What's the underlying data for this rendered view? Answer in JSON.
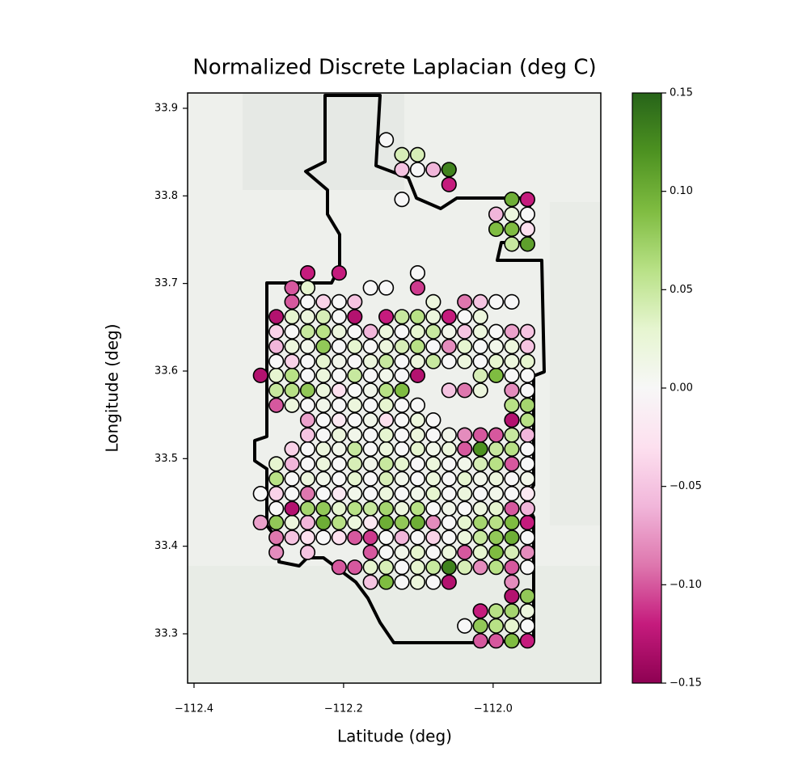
{
  "chart_data": {
    "type": "scatter",
    "title": "Normalized Discrete Laplacian (deg C)",
    "x_label": "Latitude (deg)",
    "y_label": "Longitude (deg)",
    "xlim": [
      -112.4086,
      -111.856
    ],
    "ylim": [
      33.2437,
      33.9175
    ],
    "xticks": [
      {
        "value": -112.4,
        "label": "−112.4"
      },
      {
        "value": -112.2,
        "label": "−112.2"
      },
      {
        "value": -112.0,
        "label": "−112.0"
      }
    ],
    "yticks": [
      33.3,
      33.4,
      33.5,
      33.6,
      33.7,
      33.8,
      33.9
    ],
    "colormap": "PiYG",
    "clim": [
      -0.15,
      0.15
    ],
    "cticks": [
      {
        "value": -0.15,
        "label": "−0.15"
      },
      {
        "value": -0.1,
        "label": "−0.10"
      },
      {
        "value": -0.05,
        "label": "−0.05"
      },
      {
        "value": 0,
        "label": "0.00"
      },
      {
        "value": 0.05,
        "label": "0.05"
      },
      {
        "value": 0.1,
        "label": "0.10"
      },
      0.15
    ],
    "marker_edge_color": "#000000",
    "x": [
      -112.017,
      -111.996,
      -111.975,
      -111.954,
      -112.038,
      -112.017,
      -111.996,
      -111.975,
      -111.954,
      -112.017,
      -111.996,
      -111.975,
      -111.954,
      -111.975,
      -111.954,
      -112.164,
      -112.143,
      -112.122,
      -112.101,
      -112.08,
      -112.059,
      -111.975,
      -112.206,
      -112.185,
      -112.164,
      -112.143,
      -112.122,
      -112.101,
      -112.08,
      -112.059,
      -112.038,
      -112.017,
      -111.996,
      -111.975,
      -111.954,
      -112.29,
      -112.248,
      -112.164,
      -112.143,
      -112.122,
      -112.101,
      -112.08,
      -112.059,
      -112.038,
      -112.017,
      -111.996,
      -111.975,
      -111.954,
      -112.29,
      -112.269,
      -112.248,
      -112.227,
      -112.206,
      -112.185,
      -112.164,
      -112.143,
      -112.122,
      -112.101,
      -112.08,
      -112.059,
      -112.038,
      -112.017,
      -111.996,
      -111.975,
      -111.954,
      -112.311,
      -112.29,
      -112.269,
      -112.248,
      -112.227,
      -112.206,
      -112.185,
      -112.164,
      -112.143,
      -112.122,
      -112.101,
      -112.08,
      -112.059,
      -112.038,
      -112.017,
      -111.996,
      -111.975,
      -111.954,
      -112.29,
      -112.269,
      -112.248,
      -112.227,
      -112.206,
      -112.185,
      -112.164,
      -112.143,
      -112.122,
      -112.101,
      -112.08,
      -112.059,
      -112.038,
      -112.017,
      -111.996,
      -111.975,
      -111.954,
      -112.311,
      -112.29,
      -112.269,
      -112.248,
      -112.227,
      -112.206,
      -112.185,
      -112.164,
      -112.143,
      -112.122,
      -112.101,
      -112.08,
      -112.059,
      -112.038,
      -112.017,
      -111.996,
      -111.975,
      -111.954,
      -112.29,
      -112.269,
      -112.248,
      -112.227,
      -112.206,
      -112.185,
      -112.164,
      -112.143,
      -112.122,
      -112.101,
      -112.08,
      -112.059,
      -112.038,
      -112.017,
      -111.996,
      -111.975,
      -111.954,
      -112.29,
      -112.269,
      -112.248,
      -112.227,
      -112.206,
      -112.185,
      -112.164,
      -112.143,
      -112.122,
      -112.101,
      -112.08,
      -112.059,
      -112.038,
      -112.017,
      -111.996,
      -111.975,
      -111.954,
      -112.269,
      -112.248,
      -112.227,
      -112.206,
      -112.185,
      -112.164,
      -112.143,
      -112.122,
      -112.101,
      -112.08,
      -112.059,
      -112.038,
      -112.017,
      -111.996,
      -111.975,
      -111.954,
      -112.248,
      -112.227,
      -112.206,
      -112.185,
      -112.164,
      -112.143,
      -112.122,
      -112.101,
      -112.08,
      -112.059,
      -112.038,
      -112.017,
      -111.996,
      -111.975,
      -111.954,
      -112.248,
      -112.227,
      -112.206,
      -112.185,
      -112.164,
      -112.143,
      -112.122,
      -112.101,
      -112.08,
      -111.975,
      -111.954,
      -112.29,
      -112.269,
      -112.248,
      -112.227,
      -112.206,
      -112.185,
      -112.164,
      -112.143,
      -112.122,
      -112.101,
      -111.975,
      -111.954,
      -112.29,
      -112.269,
      -112.248,
      -112.227,
      -112.206,
      -112.185,
      -112.164,
      -112.143,
      -112.122,
      -112.059,
      -112.038,
      -112.017,
      -111.975,
      -111.954,
      -112.311,
      -112.29,
      -112.269,
      -112.248,
      -112.227,
      -112.206,
      -112.185,
      -112.164,
      -112.143,
      -112.122,
      -112.101,
      -112.017,
      -111.996,
      -111.975,
      -111.954,
      -112.29,
      -112.269,
      -112.248,
      -112.227,
      -112.206,
      -112.185,
      -112.164,
      -112.143,
      -112.122,
      -112.101,
      -112.08,
      -112.059,
      -112.038,
      -112.017,
      -111.996,
      -111.975,
      -111.954,
      -112.29,
      -112.269,
      -112.248,
      -112.227,
      -112.206,
      -112.185,
      -112.164,
      -112.143,
      -112.122,
      -112.101,
      -112.08,
      -112.059,
      -112.038,
      -112.017,
      -111.996,
      -111.975,
      -111.954,
      -112.29,
      -112.269,
      -112.248,
      -112.227,
      -112.206,
      -112.185,
      -112.164,
      -112.143,
      -112.122,
      -112.101,
      -112.08,
      -112.059,
      -112.038,
      -112.017,
      -111.996,
      -111.975,
      -111.954,
      -112.29,
      -112.269,
      -112.248,
      -112.227,
      -112.206,
      -112.185,
      -112.143,
      -112.122,
      -112.101,
      -112.08,
      -112.059,
      -112.038,
      -112.017,
      -112.269,
      -112.248,
      -112.227,
      -112.206,
      -112.185,
      -112.08,
      -112.038,
      -112.017,
      -111.996,
      -111.975,
      -112.269,
      -112.248,
      -112.164,
      -112.143,
      -112.101,
      -112.248,
      -112.206,
      -112.101,
      -111.975,
      -111.954,
      -111.996,
      -111.975,
      -111.954,
      -111.996,
      -111.975,
      -111.954,
      -112.122,
      -111.975,
      -111.954,
      -112.059,
      -112.122,
      -112.101,
      -112.08,
      -112.059,
      -112.122,
      -112.101,
      -112.143
    ],
    "y": [
      33.292,
      33.292,
      33.292,
      33.292,
      33.309,
      33.309,
      33.309,
      33.309,
      33.309,
      33.326,
      33.326,
      33.326,
      33.326,
      33.343,
      33.343,
      33.359,
      33.359,
      33.359,
      33.359,
      33.359,
      33.359,
      33.359,
      33.376,
      33.376,
      33.376,
      33.376,
      33.376,
      33.376,
      33.376,
      33.376,
      33.376,
      33.376,
      33.376,
      33.376,
      33.376,
      33.393,
      33.393,
      33.393,
      33.393,
      33.393,
      33.393,
      33.393,
      33.393,
      33.393,
      33.393,
      33.393,
      33.393,
      33.393,
      33.41,
      33.41,
      33.41,
      33.41,
      33.41,
      33.41,
      33.41,
      33.41,
      33.41,
      33.41,
      33.41,
      33.41,
      33.41,
      33.41,
      33.41,
      33.41,
      33.41,
      33.427,
      33.427,
      33.427,
      33.427,
      33.427,
      33.427,
      33.427,
      33.427,
      33.427,
      33.427,
      33.427,
      33.427,
      33.427,
      33.427,
      33.427,
      33.427,
      33.427,
      33.427,
      33.443,
      33.443,
      33.443,
      33.443,
      33.443,
      33.443,
      33.443,
      33.443,
      33.443,
      33.443,
      33.443,
      33.443,
      33.443,
      33.443,
      33.443,
      33.443,
      33.443,
      33.46,
      33.46,
      33.46,
      33.46,
      33.46,
      33.46,
      33.46,
      33.46,
      33.46,
      33.46,
      33.46,
      33.46,
      33.46,
      33.46,
      33.46,
      33.46,
      33.46,
      33.46,
      33.477,
      33.477,
      33.477,
      33.477,
      33.477,
      33.477,
      33.477,
      33.477,
      33.477,
      33.477,
      33.477,
      33.477,
      33.477,
      33.477,
      33.477,
      33.477,
      33.477,
      33.494,
      33.494,
      33.494,
      33.494,
      33.494,
      33.494,
      33.494,
      33.494,
      33.494,
      33.494,
      33.494,
      33.494,
      33.494,
      33.494,
      33.494,
      33.494,
      33.494,
      33.511,
      33.511,
      33.511,
      33.511,
      33.511,
      33.511,
      33.511,
      33.511,
      33.511,
      33.511,
      33.511,
      33.511,
      33.511,
      33.511,
      33.511,
      33.511,
      33.527,
      33.527,
      33.527,
      33.527,
      33.527,
      33.527,
      33.527,
      33.527,
      33.527,
      33.527,
      33.527,
      33.527,
      33.527,
      33.527,
      33.527,
      33.544,
      33.544,
      33.544,
      33.544,
      33.544,
      33.544,
      33.544,
      33.544,
      33.544,
      33.544,
      33.544,
      33.561,
      33.561,
      33.561,
      33.561,
      33.561,
      33.561,
      33.561,
      33.561,
      33.561,
      33.561,
      33.561,
      33.561,
      33.578,
      33.578,
      33.578,
      33.578,
      33.578,
      33.578,
      33.578,
      33.578,
      33.578,
      33.578,
      33.578,
      33.578,
      33.578,
      33.578,
      33.595,
      33.595,
      33.595,
      33.595,
      33.595,
      33.595,
      33.595,
      33.595,
      33.595,
      33.595,
      33.595,
      33.595,
      33.595,
      33.595,
      33.595,
      33.611,
      33.611,
      33.611,
      33.611,
      33.611,
      33.611,
      33.611,
      33.611,
      33.611,
      33.611,
      33.611,
      33.611,
      33.611,
      33.611,
      33.611,
      33.611,
      33.611,
      33.628,
      33.628,
      33.628,
      33.628,
      33.628,
      33.628,
      33.628,
      33.628,
      33.628,
      33.628,
      33.628,
      33.628,
      33.628,
      33.628,
      33.628,
      33.628,
      33.628,
      33.645,
      33.645,
      33.645,
      33.645,
      33.645,
      33.645,
      33.645,
      33.645,
      33.645,
      33.645,
      33.645,
      33.645,
      33.645,
      33.645,
      33.645,
      33.645,
      33.645,
      33.662,
      33.662,
      33.662,
      33.662,
      33.662,
      33.662,
      33.662,
      33.662,
      33.662,
      33.662,
      33.662,
      33.662,
      33.662,
      33.679,
      33.679,
      33.679,
      33.679,
      33.679,
      33.679,
      33.679,
      33.679,
      33.679,
      33.679,
      33.695,
      33.695,
      33.695,
      33.695,
      33.695,
      33.712,
      33.712,
      33.712,
      33.745,
      33.745,
      33.762,
      33.762,
      33.762,
      33.779,
      33.779,
      33.779,
      33.796,
      33.796,
      33.796,
      33.813,
      33.83,
      33.83,
      33.83,
      33.83,
      33.847,
      33.847,
      33.864
    ],
    "values": [
      -0.1,
      -0.1,
      0.09,
      -0.12,
      0,
      0.08,
      0.06,
      0.03,
      0,
      -0.12,
      0.06,
      0.07,
      0.02,
      -0.13,
      0.08,
      -0.05,
      0.09,
      0,
      0.02,
      0,
      -0.13,
      -0.08,
      -0.1,
      -0.1,
      0.03,
      0.04,
      0,
      0.03,
      0.05,
      0.13,
      0.04,
      -0.08,
      0.06,
      -0.1,
      0,
      -0.08,
      -0.05,
      -0.1,
      0,
      0.01,
      0.03,
      0,
      0.02,
      -0.1,
      0.03,
      0.09,
      0.04,
      -0.08,
      -0.09,
      -0.05,
      -0.03,
      0,
      -0.03,
      -0.1,
      -0.11,
      0,
      -0.06,
      0,
      -0.04,
      0,
      0.02,
      0.05,
      0.08,
      0.1,
      0,
      -0.07,
      0.08,
      0.02,
      -0.06,
      0.1,
      0.06,
      0.02,
      -0.02,
      0.1,
      0.08,
      0.1,
      -0.08,
      0,
      0.03,
      0.07,
      0.06,
      0.09,
      -0.12,
      0,
      -0.13,
      0.07,
      0.08,
      0.03,
      0.06,
      0.05,
      0.07,
      0.02,
      0.06,
      0,
      0.01,
      0,
      0.02,
      0.03,
      -0.1,
      -0.06,
      0,
      -0.04,
      0,
      -0.09,
      0,
      -0.02,
      0.01,
      0,
      0.02,
      0,
      0.01,
      0.03,
      0,
      0.02,
      0,
      0.01,
      0,
      -0.02,
      0.06,
      0,
      0.02,
      0.01,
      0,
      0.03,
      0,
      0.04,
      0.01,
      0,
      0.02,
      0,
      0.03,
      0.01,
      0.02,
      0,
      0.01,
      0.03,
      -0.06,
      0,
      0.02,
      0,
      0.04,
      0.01,
      0.05,
      0.03,
      0,
      0.02,
      0,
      0.01,
      0.04,
      0.06,
      -0.1,
      0,
      -0.04,
      0,
      0.02,
      0.01,
      0.05,
      0,
      0.02,
      0,
      0.03,
      0.01,
      0.02,
      -0.1,
      0.12,
      0.05,
      0.06,
      0,
      -0.05,
      0,
      0.02,
      0.01,
      0,
      0.03,
      0,
      0.02,
      0,
      0.01,
      -0.08,
      -0.1,
      -0.1,
      0.05,
      -0.06,
      -0.07,
      0,
      -0.02,
      0,
      0.01,
      -0.03,
      0,
      0.02,
      0,
      -0.13,
      0.06,
      -0.1,
      0.02,
      0,
      0.01,
      0,
      0.02,
      0,
      0.03,
      0,
      0,
      0.06,
      0.07,
      0.05,
      0.06,
      0.08,
      0.02,
      -0.03,
      0,
      0.01,
      0.06,
      0.09,
      -0.05,
      -0.09,
      0.02,
      -0.08,
      0,
      -0.13,
      0.03,
      0.06,
      0,
      0.02,
      0,
      0.05,
      0,
      0.01,
      0,
      -0.13,
      0.04,
      0.09,
      0,
      0,
      0,
      -0.04,
      0,
      0.03,
      0.01,
      0,
      0.02,
      0.05,
      0,
      0.02,
      0.05,
      0,
      0.02,
      0,
      0.03,
      0.02,
      0.03,
      -0.06,
      0.02,
      0.01,
      0.08,
      0,
      0.03,
      0,
      0.02,
      0.04,
      0.06,
      0,
      -0.08,
      0.03,
      0,
      0.01,
      0.02,
      -0.05,
      -0.04,
      0,
      0.05,
      0.06,
      0.02,
      0,
      -0.06,
      0.02,
      0,
      0.03,
      0.05,
      0.01,
      -0.05,
      0.02,
      0,
      -0.07,
      -0.05,
      -0.13,
      0.03,
      0.02,
      0.04,
      0,
      -0.13,
      -0.12,
      0.05,
      0.06,
      0.02,
      -0.12,
      0,
      0.02,
      -0.1,
      0,
      -0.04,
      0,
      -0.05,
      0.02,
      -0.09,
      -0.05,
      0,
      0,
      -0.1,
      0.03,
      0,
      0,
      -0.11,
      -0.12,
      -0.12,
      0,
      0.05,
      0.11,
      0.09,
      0.09,
      -0.03,
      -0.06,
      0.02,
      0,
      0,
      0.1,
      -0.12,
      -0.12,
      -0.05,
      0,
      -0.06,
      0.13,
      0.04,
      0.04,
      0
    ]
  }
}
